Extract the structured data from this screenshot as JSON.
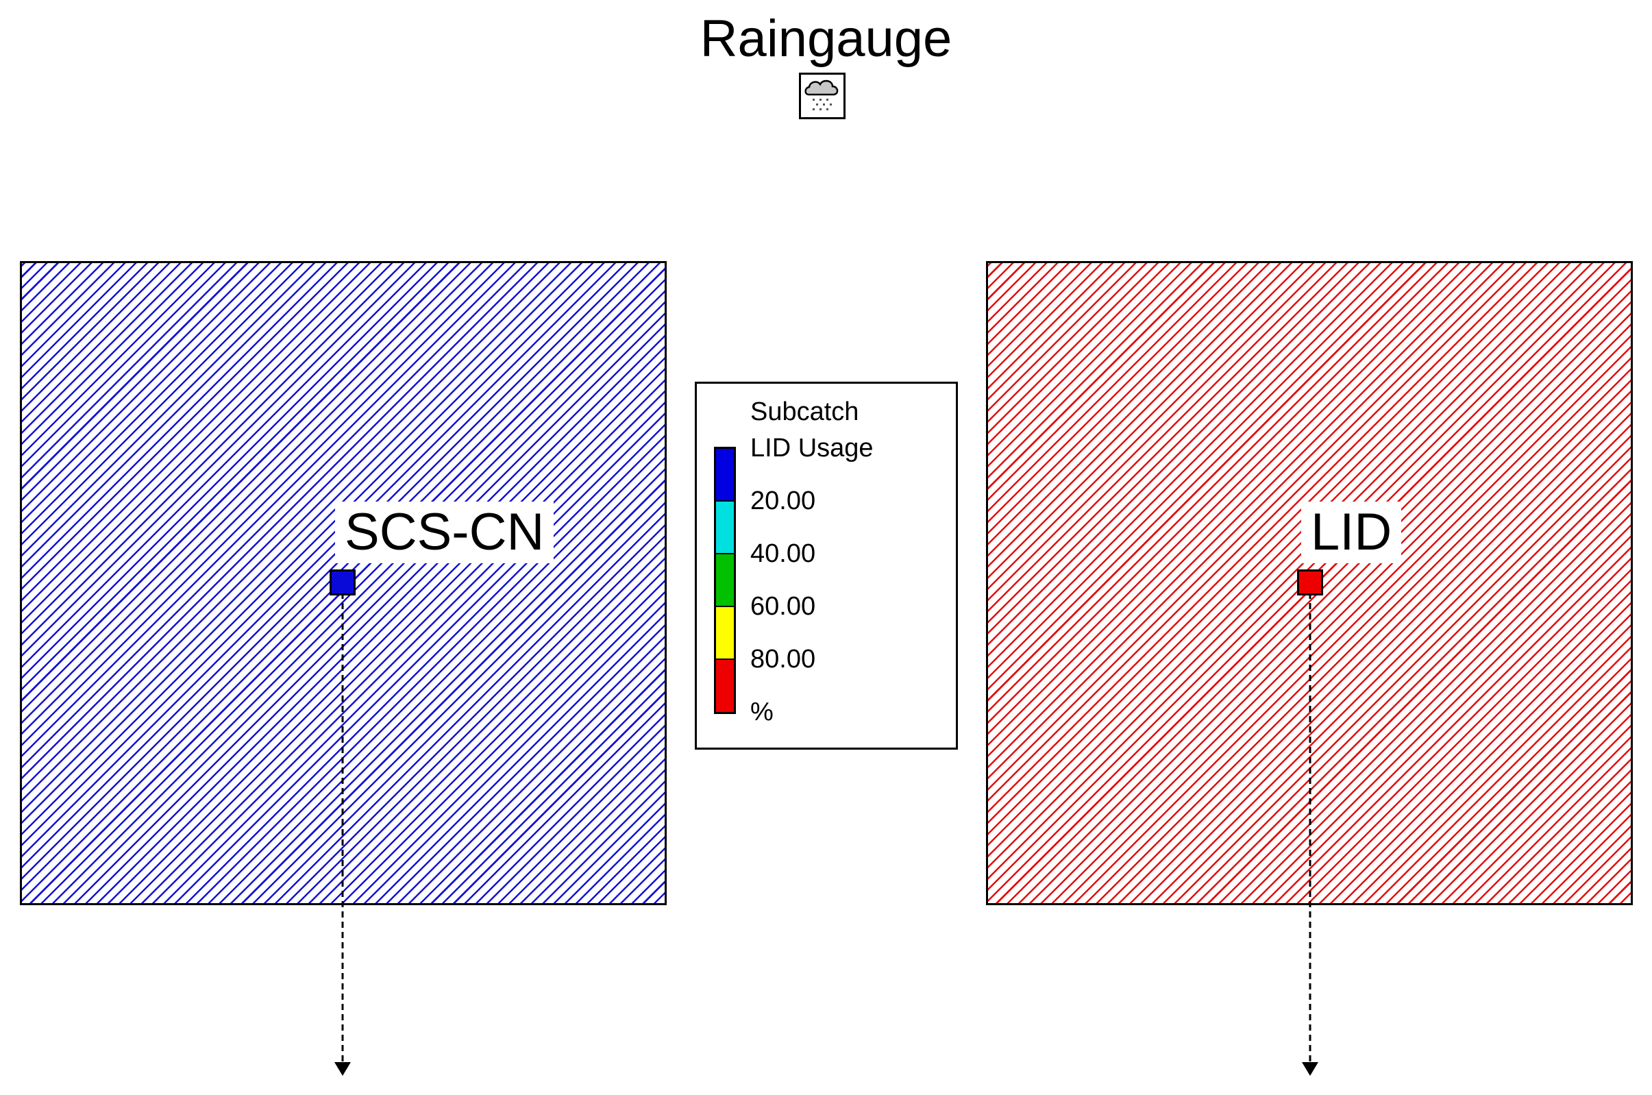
{
  "raingauge": {
    "label": "Raingauge",
    "icon": "rain-cloud-icon"
  },
  "subcatchments": [
    {
      "label": "SCS-CN",
      "hatch_color": "#1414d2",
      "centroid_color": "#0a0ad8"
    },
    {
      "label": "LID",
      "hatch_color": "#e01010",
      "centroid_color": "#ee0000"
    }
  ],
  "legend": {
    "title_line1": "Subcatch",
    "title_line2": "LID Usage",
    "colors": [
      "#0000e0",
      "#00e0e0",
      "#00c000",
      "#ffff00",
      "#ee0000"
    ],
    "breakpoints": [
      "20.00",
      "40.00",
      "60.00",
      "80.00"
    ],
    "unit": "%"
  }
}
